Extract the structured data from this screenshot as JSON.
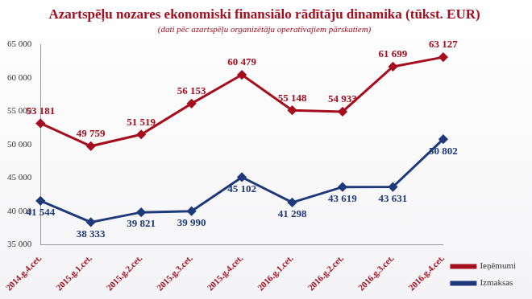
{
  "chart_data": {
    "type": "line",
    "title": "Azartspēļu nozares ekonomiski finansiālo rādītāju dinamika (tūkst. EUR)",
    "subtitle": "(dati pēc azartspēļu organizētāju operatīvajiem pārskatiem)",
    "categories": [
      "2014.g.4.cet.",
      "2015.g.1.cet.",
      "2015.g.2.cet.",
      "2015.g.3.cet.",
      "2015.g.4.cet.",
      "2016.g.1.cet.",
      "2016.g.2.cet.",
      "2016.g.3.cet.",
      "2016.g.4.cet."
    ],
    "series": [
      {
        "name": "Ieņēmumi",
        "color": "#a50e1e",
        "marker": "diamond",
        "values": [
          53181,
          49759,
          51519,
          56153,
          60479,
          55148,
          54933,
          61699,
          63127
        ],
        "value_labels": [
          "53 181",
          "49 759",
          "51 519",
          "56 153",
          "60 479",
          "55 148",
          "54 933",
          "61 699",
          "63 127"
        ]
      },
      {
        "name": "Izmaksas",
        "color": "#1f3a7a",
        "marker": "diamond",
        "values": [
          41544,
          38333,
          39821,
          39990,
          45102,
          41298,
          43619,
          43631,
          50802
        ],
        "value_labels": [
          "41 544",
          "38 333",
          "39 821",
          "39 990",
          "45 102",
          "41 298",
          "43 619",
          "43 631",
          "50 802"
        ]
      }
    ],
    "ylim": [
      35000,
      65000
    ],
    "yticks": [
      {
        "value": 35000,
        "label": "35 000"
      },
      {
        "value": 40000,
        "label": "40 000"
      },
      {
        "value": 45000,
        "label": "45 000"
      },
      {
        "value": 50000,
        "label": "50 000"
      },
      {
        "value": 55000,
        "label": "55 000"
      },
      {
        "value": 60000,
        "label": "60 000"
      },
      {
        "value": 65000,
        "label": "65 000"
      }
    ],
    "grid": false,
    "legend": "right",
    "data_labels": true
  }
}
